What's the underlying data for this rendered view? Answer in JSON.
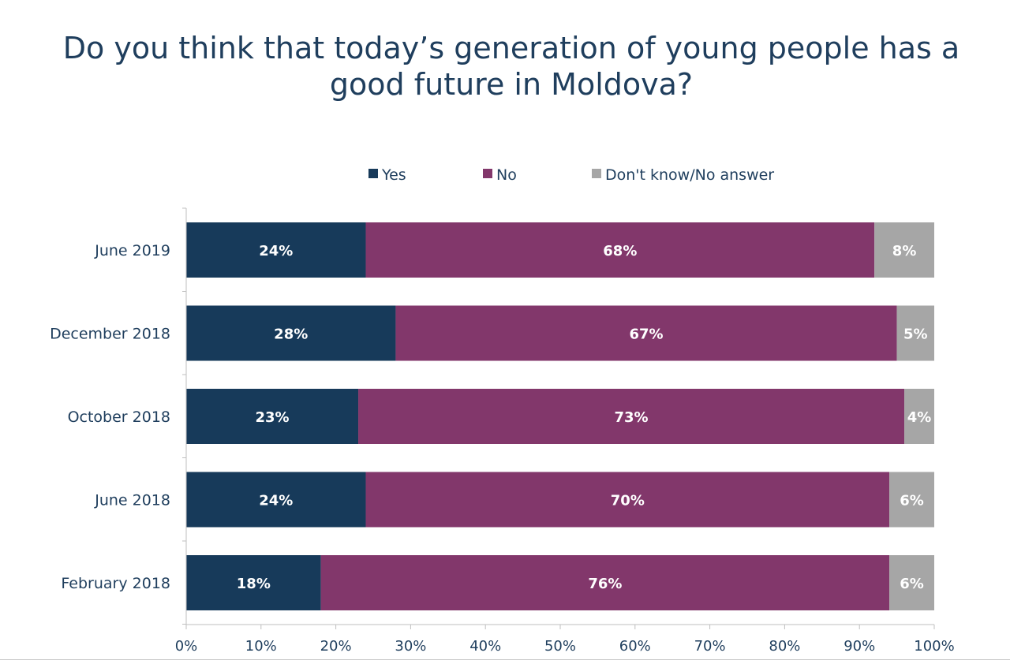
{
  "chart_data": {
    "type": "bar",
    "orientation": "horizontal",
    "stacked": true,
    "title": "Do you think that today’s generation of young people has a good future in Moldova?",
    "categories": [
      "June 2019",
      "December 2018",
      "October 2018",
      "June 2018",
      "February 2018"
    ],
    "series": [
      {
        "name": "Yes",
        "color": "#173a5a",
        "values": [
          24,
          28,
          23,
          24,
          18
        ]
      },
      {
        "name": "No",
        "color": "#82376b",
        "values": [
          68,
          67,
          73,
          70,
          76
        ]
      },
      {
        "name": "Don't know/No answer",
        "color": "#a6a6a6",
        "values": [
          8,
          5,
          4,
          6,
          6
        ]
      }
    ],
    "data_labels": [
      [
        "24%",
        "68%",
        "8%"
      ],
      [
        "28%",
        "67%",
        "5%"
      ],
      [
        "23%",
        "73%",
        "4%"
      ],
      [
        "24%",
        "70%",
        "6%"
      ],
      [
        "18%",
        "76%",
        "6%"
      ]
    ],
    "xlim": [
      0,
      100
    ],
    "xticks": [
      "0%",
      "10%",
      "20%",
      "30%",
      "40%",
      "50%",
      "60%",
      "70%",
      "80%",
      "90%",
      "100%"
    ],
    "legend_position": "top",
    "grid": false
  }
}
